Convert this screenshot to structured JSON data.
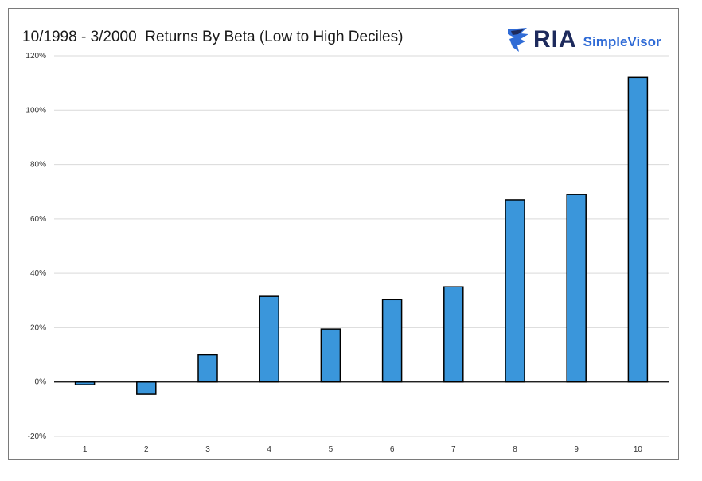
{
  "chart_data": {
    "type": "bar",
    "title": "10/1998 - 3/2000  Returns By Beta (Low to High Deciles)",
    "categories": [
      "1",
      "2",
      "3",
      "4",
      "5",
      "6",
      "7",
      "8",
      "9",
      "10"
    ],
    "values": [
      -1,
      -4.5,
      10,
      31.5,
      19.5,
      30.3,
      35,
      67,
      69,
      112
    ],
    "ylim": [
      -20,
      120
    ],
    "yticks": [
      -20,
      0,
      20,
      40,
      60,
      80,
      100,
      120
    ],
    "ytick_labels": [
      "-20%",
      "0%",
      "20%",
      "40%",
      "60%",
      "80%",
      "100%",
      "120%"
    ],
    "xlabel": "",
    "ylabel": "",
    "grid": true,
    "bar_color": "#3a96db",
    "bar_edge_color": "#000000",
    "grid_color": "#d9d9d9"
  },
  "logo": {
    "brand": "RIA",
    "product": "SimpleVisor",
    "icon": "eagle-icon",
    "brand_color": "#1d2a5c",
    "product_color": "#2f6bd6"
  }
}
